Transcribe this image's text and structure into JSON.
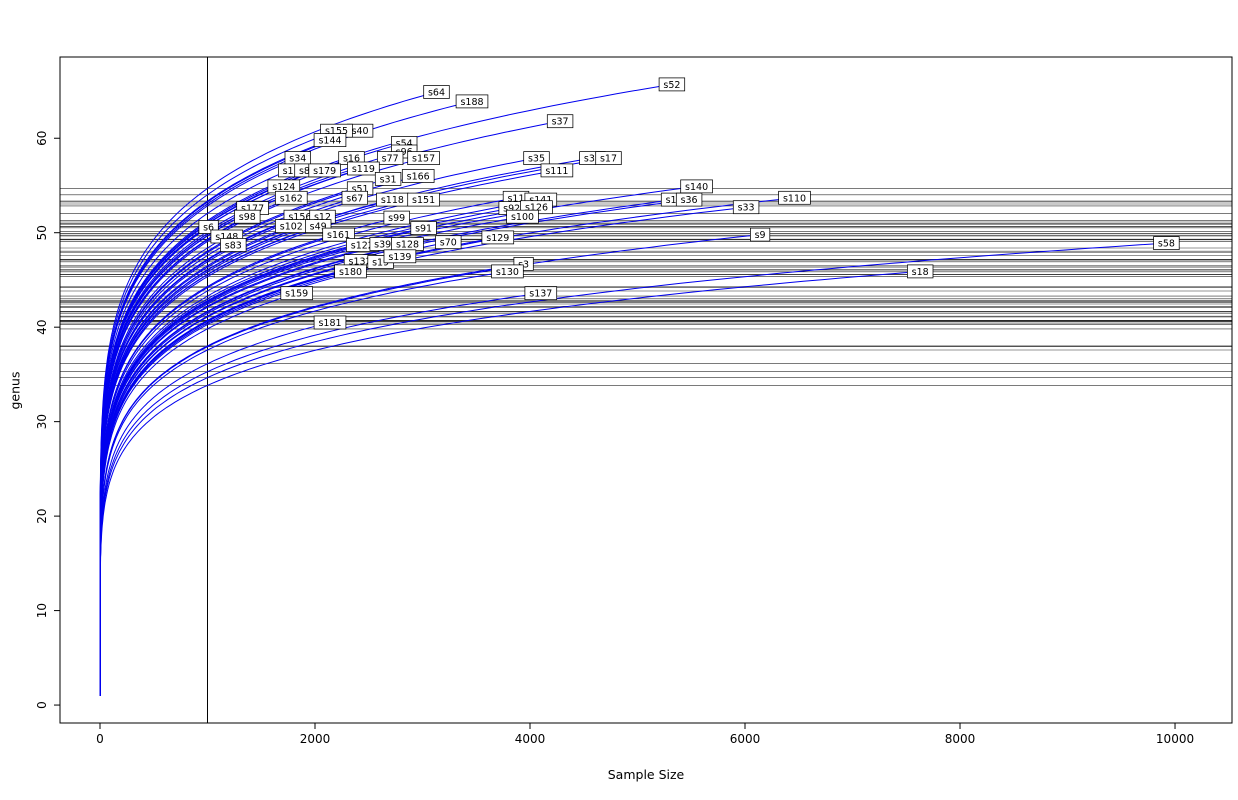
{
  "chart_data": {
    "type": "line",
    "title": "",
    "xlabel": "Sample Size",
    "ylabel": "genus",
    "xlim": [
      -372,
      10530
    ],
    "ylim": [
      -1.9,
      68.6
    ],
    "x_ticks": [
      0,
      2000,
      4000,
      6000,
      8000,
      10000
    ],
    "y_ticks": [
      0,
      10,
      20,
      30,
      40,
      50,
      60
    ],
    "sample_line_x": 1000,
    "curve_exponent": 0.15,
    "curve_color": "#0000EE",
    "ref_line_color": "#2b2b2b",
    "frame_color": "#000000",
    "legend": "none",
    "grid": false,
    "series": [
      {
        "label": "s52",
        "end_x": 5320,
        "end_y": 65.7
      },
      {
        "label": "s64",
        "end_x": 3130,
        "end_y": 64.9
      },
      {
        "label": "s188",
        "end_x": 3460,
        "end_y": 63.9
      },
      {
        "label": "s37",
        "end_x": 4280,
        "end_y": 61.8
      },
      {
        "label": "s40",
        "end_x": 2420,
        "end_y": 60.8
      },
      {
        "label": "s155",
        "end_x": 2200,
        "end_y": 60.8
      },
      {
        "label": "s144",
        "end_x": 2140,
        "end_y": 59.8
      },
      {
        "label": "s54",
        "end_x": 2830,
        "end_y": 59.5
      },
      {
        "label": "s96",
        "end_x": 2830,
        "end_y": 58.6
      },
      {
        "label": "s34",
        "end_x": 1840,
        "end_y": 57.9
      },
      {
        "label": "s16",
        "end_x": 2340,
        "end_y": 57.9
      },
      {
        "label": "s77",
        "end_x": 2700,
        "end_y": 57.9
      },
      {
        "label": "s157",
        "end_x": 3010,
        "end_y": 57.9
      },
      {
        "label": "s35",
        "end_x": 4060,
        "end_y": 57.9
      },
      {
        "label": "s30",
        "end_x": 4580,
        "end_y": 57.9
      },
      {
        "label": "s17",
        "end_x": 4730,
        "end_y": 57.9
      },
      {
        "label": "s1",
        "end_x": 1750,
        "end_y": 56.6
      },
      {
        "label": "s85",
        "end_x": 1930,
        "end_y": 56.6
      },
      {
        "label": "s179",
        "end_x": 2090,
        "end_y": 56.6
      },
      {
        "label": "s119",
        "end_x": 2450,
        "end_y": 56.8
      },
      {
        "label": "s111",
        "end_x": 4250,
        "end_y": 56.6
      },
      {
        "label": "s31",
        "end_x": 2680,
        "end_y": 55.7
      },
      {
        "label": "s166",
        "end_x": 2960,
        "end_y": 56.0
      },
      {
        "label": "s124",
        "end_x": 1710,
        "end_y": 54.9
      },
      {
        "label": "s51",
        "end_x": 2420,
        "end_y": 54.7
      },
      {
        "label": "s140",
        "end_x": 5550,
        "end_y": 54.9
      },
      {
        "label": "s162",
        "end_x": 1780,
        "end_y": 53.7
      },
      {
        "label": "s67",
        "end_x": 2370,
        "end_y": 53.7
      },
      {
        "label": "s118",
        "end_x": 2720,
        "end_y": 53.5
      },
      {
        "label": "s151",
        "end_x": 3010,
        "end_y": 53.5
      },
      {
        "label": "s11",
        "end_x": 3870,
        "end_y": 53.7
      },
      {
        "label": "s141",
        "end_x": 4100,
        "end_y": 53.5
      },
      {
        "label": "s10",
        "end_x": 5340,
        "end_y": 53.5
      },
      {
        "label": "s36",
        "end_x": 5480,
        "end_y": 53.5
      },
      {
        "label": "s33",
        "end_x": 6010,
        "end_y": 52.7
      },
      {
        "label": "s110",
        "end_x": 6460,
        "end_y": 53.7
      },
      {
        "label": "s177",
        "end_x": 1420,
        "end_y": 52.6
      },
      {
        "label": "s92",
        "end_x": 3830,
        "end_y": 52.6
      },
      {
        "label": "s126",
        "end_x": 4060,
        "end_y": 52.7
      },
      {
        "label": "s98",
        "end_x": 1370,
        "end_y": 51.7
      },
      {
        "label": "s156",
        "end_x": 1860,
        "end_y": 51.7
      },
      {
        "label": "s12",
        "end_x": 2070,
        "end_y": 51.7
      },
      {
        "label": "s100",
        "end_x": 3930,
        "end_y": 51.7
      },
      {
        "label": "s99",
        "end_x": 2760,
        "end_y": 51.6
      },
      {
        "label": "s6",
        "end_x": 1010,
        "end_y": 50.6
      },
      {
        "label": "s102",
        "end_x": 1780,
        "end_y": 50.7
      },
      {
        "label": "s49",
        "end_x": 2030,
        "end_y": 50.7
      },
      {
        "label": "s148",
        "end_x": 1180,
        "end_y": 49.6
      },
      {
        "label": "s161",
        "end_x": 2220,
        "end_y": 49.8
      },
      {
        "label": "s91",
        "end_x": 3010,
        "end_y": 50.5
      },
      {
        "label": "s129",
        "end_x": 3700,
        "end_y": 49.5
      },
      {
        "label": "s9",
        "end_x": 6140,
        "end_y": 49.8
      },
      {
        "label": "s83",
        "end_x": 1240,
        "end_y": 48.7
      },
      {
        "label": "s122",
        "end_x": 2440,
        "end_y": 48.7
      },
      {
        "label": "s39",
        "end_x": 2630,
        "end_y": 48.8
      },
      {
        "label": "s128",
        "end_x": 2860,
        "end_y": 48.8
      },
      {
        "label": "s70",
        "end_x": 3240,
        "end_y": 49.0
      },
      {
        "label": "s58",
        "end_x": 9920,
        "end_y": 48.9
      },
      {
        "label": "s132",
        "end_x": 2420,
        "end_y": 47.0
      },
      {
        "label": "s19",
        "end_x": 2610,
        "end_y": 46.9
      },
      {
        "label": "s139",
        "end_x": 2790,
        "end_y": 47.5
      },
      {
        "label": "s3",
        "end_x": 3940,
        "end_y": 46.7
      },
      {
        "label": "s180",
        "end_x": 2330,
        "end_y": 45.9
      },
      {
        "label": "s130",
        "end_x": 3790,
        "end_y": 45.9
      },
      {
        "label": "s18",
        "end_x": 7630,
        "end_y": 45.9
      },
      {
        "label": "s159",
        "end_x": 1830,
        "end_y": 43.6
      },
      {
        "label": "s137",
        "end_x": 4100,
        "end_y": 43.6
      },
      {
        "label": "s181",
        "end_x": 2140,
        "end_y": 40.5
      }
    ]
  }
}
